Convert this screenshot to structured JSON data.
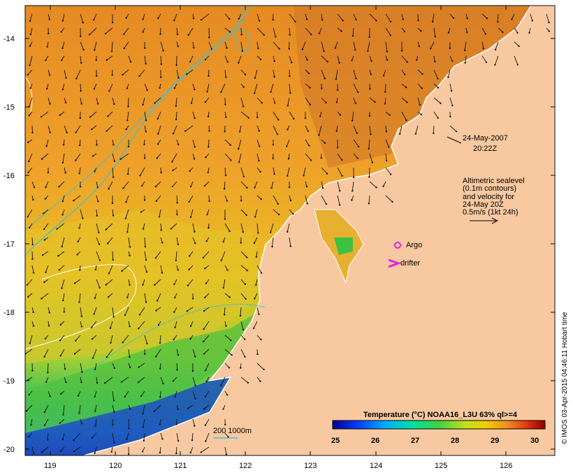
{
  "map": {
    "timestamp_date": "24-May-2007",
    "timestamp_time": "20:22Z",
    "altimetry_note": [
      "Altimetric sealevel",
      "(0.1m contours)",
      "and velocity for",
      "24-May 20Z",
      "0.5m/s (1kt 24h)"
    ],
    "markers": {
      "argo_label": "Argo",
      "drifter_label": "drifter",
      "argo_color": "#e020e0",
      "drifter_color": "#e020e0"
    },
    "bathymetry_legend": "200 1000m",
    "bathymetry_color": "#40c0d0",
    "colorbar": {
      "title": "Temperature (°C) NOAA16_L3U 63% ql>=4",
      "ticks": [
        "25",
        "26",
        "27",
        "28",
        "29",
        "30"
      ]
    },
    "credit": "© IMOS 03-Apr-2015 04:46:11 Hobart time",
    "land_color": "#f8c9a0",
    "axes": {
      "lat_ticks": [
        "-14",
        "-15",
        "-16",
        "-17",
        "-18",
        "-19",
        "-20"
      ],
      "lon_ticks": [
        "119",
        "120",
        "121",
        "122",
        "123",
        "124",
        "125",
        "126"
      ]
    }
  }
}
